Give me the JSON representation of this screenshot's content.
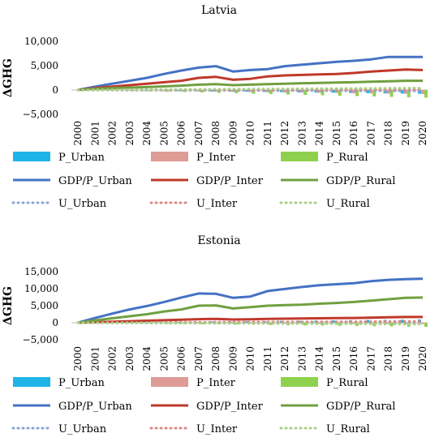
{
  "chart_data": [
    {
      "type": "combo",
      "title": "Latvia",
      "ylabel": "ΔGHG",
      "xlabel": "",
      "ylim": [
        -5000,
        10000
      ],
      "yticks": [
        10000,
        5000,
        0,
        -5000
      ],
      "ytick_labels": [
        "10,000",
        "5,000",
        "0",
        "−5,000"
      ],
      "x": [
        "2000",
        "2001",
        "2002",
        "2003",
        "2004",
        "2005",
        "2006",
        "2007",
        "2008",
        "2009",
        "2010",
        "2011",
        "2012",
        "2013",
        "2014",
        "2015",
        "2016",
        "2017",
        "2018",
        "2019",
        "2020"
      ],
      "series": [
        {
          "name": "P_Urban",
          "kind": "bar",
          "color": "#1fb4e8",
          "values": [
            0,
            -30,
            -60,
            -90,
            -130,
            -170,
            -210,
            -250,
            -290,
            -320,
            -360,
            -400,
            -440,
            -480,
            -520,
            -560,
            -600,
            -640,
            -680,
            -720,
            -760
          ]
        },
        {
          "name": "P_Inter",
          "kind": "bar",
          "color": "#df9b96",
          "values": [
            0,
            -40,
            -80,
            -120,
            -170,
            -220,
            -260,
            -300,
            -340,
            -380,
            -420,
            -460,
            -500,
            -540,
            -580,
            -620,
            -660,
            -700,
            -740,
            -780,
            -820
          ]
        },
        {
          "name": "P_Rural",
          "kind": "bar",
          "color": "#8fd14f",
          "values": [
            0,
            -60,
            -120,
            -190,
            -260,
            -340,
            -420,
            -500,
            -580,
            -660,
            -750,
            -840,
            -920,
            -1000,
            -1080,
            -1160,
            -1240,
            -1320,
            -1400,
            -1480,
            -1560
          ]
        },
        {
          "name": "GDP/P_Urban",
          "kind": "line",
          "style": "solid",
          "color": "#4472c4",
          "values": [
            0,
            700,
            1300,
            1900,
            2500,
            3300,
            4000,
            4600,
            4900,
            3800,
            4100,
            4300,
            4900,
            5200,
            5500,
            5800,
            6000,
            6300,
            6800,
            6800,
            6800
          ]
        },
        {
          "name": "GDP/P_Inter",
          "kind": "line",
          "style": "solid",
          "color": "#c0392b",
          "values": [
            0,
            400,
            700,
            1000,
            1300,
            1600,
            1900,
            2500,
            2700,
            2100,
            2300,
            2800,
            3000,
            3100,
            3200,
            3300,
            3500,
            3800,
            4000,
            4200,
            4100
          ]
        },
        {
          "name": "GDP/P_Rural",
          "kind": "line",
          "style": "solid",
          "color": "#70a040",
          "values": [
            0,
            250,
            400,
            500,
            600,
            750,
            900,
            1100,
            1200,
            1000,
            1100,
            1200,
            1300,
            1400,
            1450,
            1550,
            1600,
            1700,
            1800,
            1900,
            1900
          ]
        },
        {
          "name": "U_Urban",
          "kind": "line",
          "style": "dotted",
          "color": "#8aa4d4",
          "values": [
            0,
            -10,
            -20,
            -30,
            -40,
            -50,
            -60,
            -70,
            -80,
            -90,
            -100,
            -110,
            -120,
            -130,
            -140,
            -150,
            -160,
            -170,
            -180,
            -190,
            -200
          ]
        },
        {
          "name": "U_Inter",
          "kind": "line",
          "style": "dotted",
          "color": "#d98a84",
          "values": [
            0,
            0,
            0,
            10,
            10,
            10,
            20,
            20,
            20,
            30,
            30,
            30,
            40,
            40,
            40,
            50,
            50,
            50,
            60,
            60,
            60
          ]
        },
        {
          "name": "U_Rural",
          "kind": "line",
          "style": "dotted",
          "color": "#a9cf86",
          "values": [
            0,
            20,
            40,
            60,
            80,
            100,
            120,
            140,
            160,
            180,
            200,
            220,
            240,
            260,
            280,
            300,
            320,
            340,
            360,
            380,
            400
          ]
        }
      ]
    },
    {
      "type": "combo",
      "title": "Estonia",
      "ylabel": "ΔGHG",
      "xlabel": "",
      "ylim": [
        -5000,
        15000
      ],
      "yticks": [
        15000,
        10000,
        5000,
        0,
        -5000
      ],
      "ytick_labels": [
        "15,000",
        "10,000",
        "5,000",
        "0",
        "−5,000"
      ],
      "x": [
        "2000",
        "2001",
        "2002",
        "2003",
        "2004",
        "2005",
        "2006",
        "2007",
        "2008",
        "2009",
        "2010",
        "2011",
        "2012",
        "2013",
        "2014",
        "2015",
        "2016",
        "2017",
        "2018",
        "2019",
        "2020"
      ],
      "series": [
        {
          "name": "P_Urban",
          "kind": "bar",
          "color": "#1fb4e8",
          "values": [
            0,
            40,
            80,
            120,
            160,
            200,
            250,
            300,
            350,
            400,
            450,
            500,
            550,
            600,
            650,
            700,
            750,
            800,
            850,
            900,
            950
          ]
        },
        {
          "name": "P_Inter",
          "kind": "bar",
          "color": "#df9b96",
          "values": [
            0,
            -20,
            -40,
            -60,
            -80,
            -100,
            -120,
            -140,
            -160,
            -180,
            -200,
            -220,
            -240,
            -260,
            -280,
            -300,
            -320,
            -340,
            -360,
            -380,
            -400
          ]
        },
        {
          "name": "P_Rural",
          "kind": "bar",
          "color": "#8fd14f",
          "values": [
            0,
            -60,
            -120,
            -180,
            -240,
            -300,
            -360,
            -420,
            -480,
            -540,
            -600,
            -660,
            -720,
            -780,
            -840,
            -900,
            -960,
            -1020,
            -1080,
            -1140,
            -1200
          ]
        },
        {
          "name": "GDP/P_Urban",
          "kind": "line",
          "style": "solid",
          "color": "#4472c4",
          "values": [
            0,
            1400,
            2700,
            3900,
            4900,
            6100,
            7400,
            8600,
            8500,
            7300,
            7700,
            9300,
            9900,
            10500,
            11000,
            11300,
            11600,
            12200,
            12600,
            12800,
            12900
          ]
        },
        {
          "name": "GDP/P_Inter",
          "kind": "line",
          "style": "solid",
          "color": "#c0392b",
          "values": [
            0,
            150,
            300,
            450,
            600,
            750,
            900,
            1050,
            1150,
            950,
            1000,
            1150,
            1200,
            1250,
            1300,
            1350,
            1400,
            1500,
            1600,
            1700,
            1700
          ]
        },
        {
          "name": "GDP/P_Rural",
          "kind": "line",
          "style": "solid",
          "color": "#70a040",
          "values": [
            0,
            700,
            1300,
            1900,
            2500,
            3300,
            3900,
            5000,
            5100,
            4200,
            4600,
            5000,
            5200,
            5300,
            5600,
            5800,
            6100,
            6500,
            6900,
            7300,
            7400
          ]
        },
        {
          "name": "U_Urban",
          "kind": "line",
          "style": "dotted",
          "color": "#8aa4d4",
          "values": [
            0,
            -10,
            -20,
            -30,
            -40,
            -50,
            -60,
            -70,
            -80,
            -90,
            -100,
            -110,
            -120,
            -130,
            -140,
            -150,
            -160,
            -170,
            -180,
            -190,
            -200
          ]
        },
        {
          "name": "U_Inter",
          "kind": "line",
          "style": "dotted",
          "color": "#d98a84",
          "values": [
            0,
            20,
            40,
            60,
            80,
            100,
            120,
            140,
            160,
            180,
            200,
            220,
            240,
            260,
            280,
            300,
            320,
            340,
            360,
            380,
            400
          ]
        },
        {
          "name": "U_Rural",
          "kind": "line",
          "style": "dotted",
          "color": "#a9cf86",
          "values": [
            0,
            -20,
            -40,
            -60,
            -80,
            -100,
            -120,
            -140,
            -160,
            -180,
            -200,
            -220,
            -240,
            -260,
            -280,
            -300,
            -320,
            -340,
            -360,
            -380,
            -400
          ]
        }
      ]
    }
  ]
}
